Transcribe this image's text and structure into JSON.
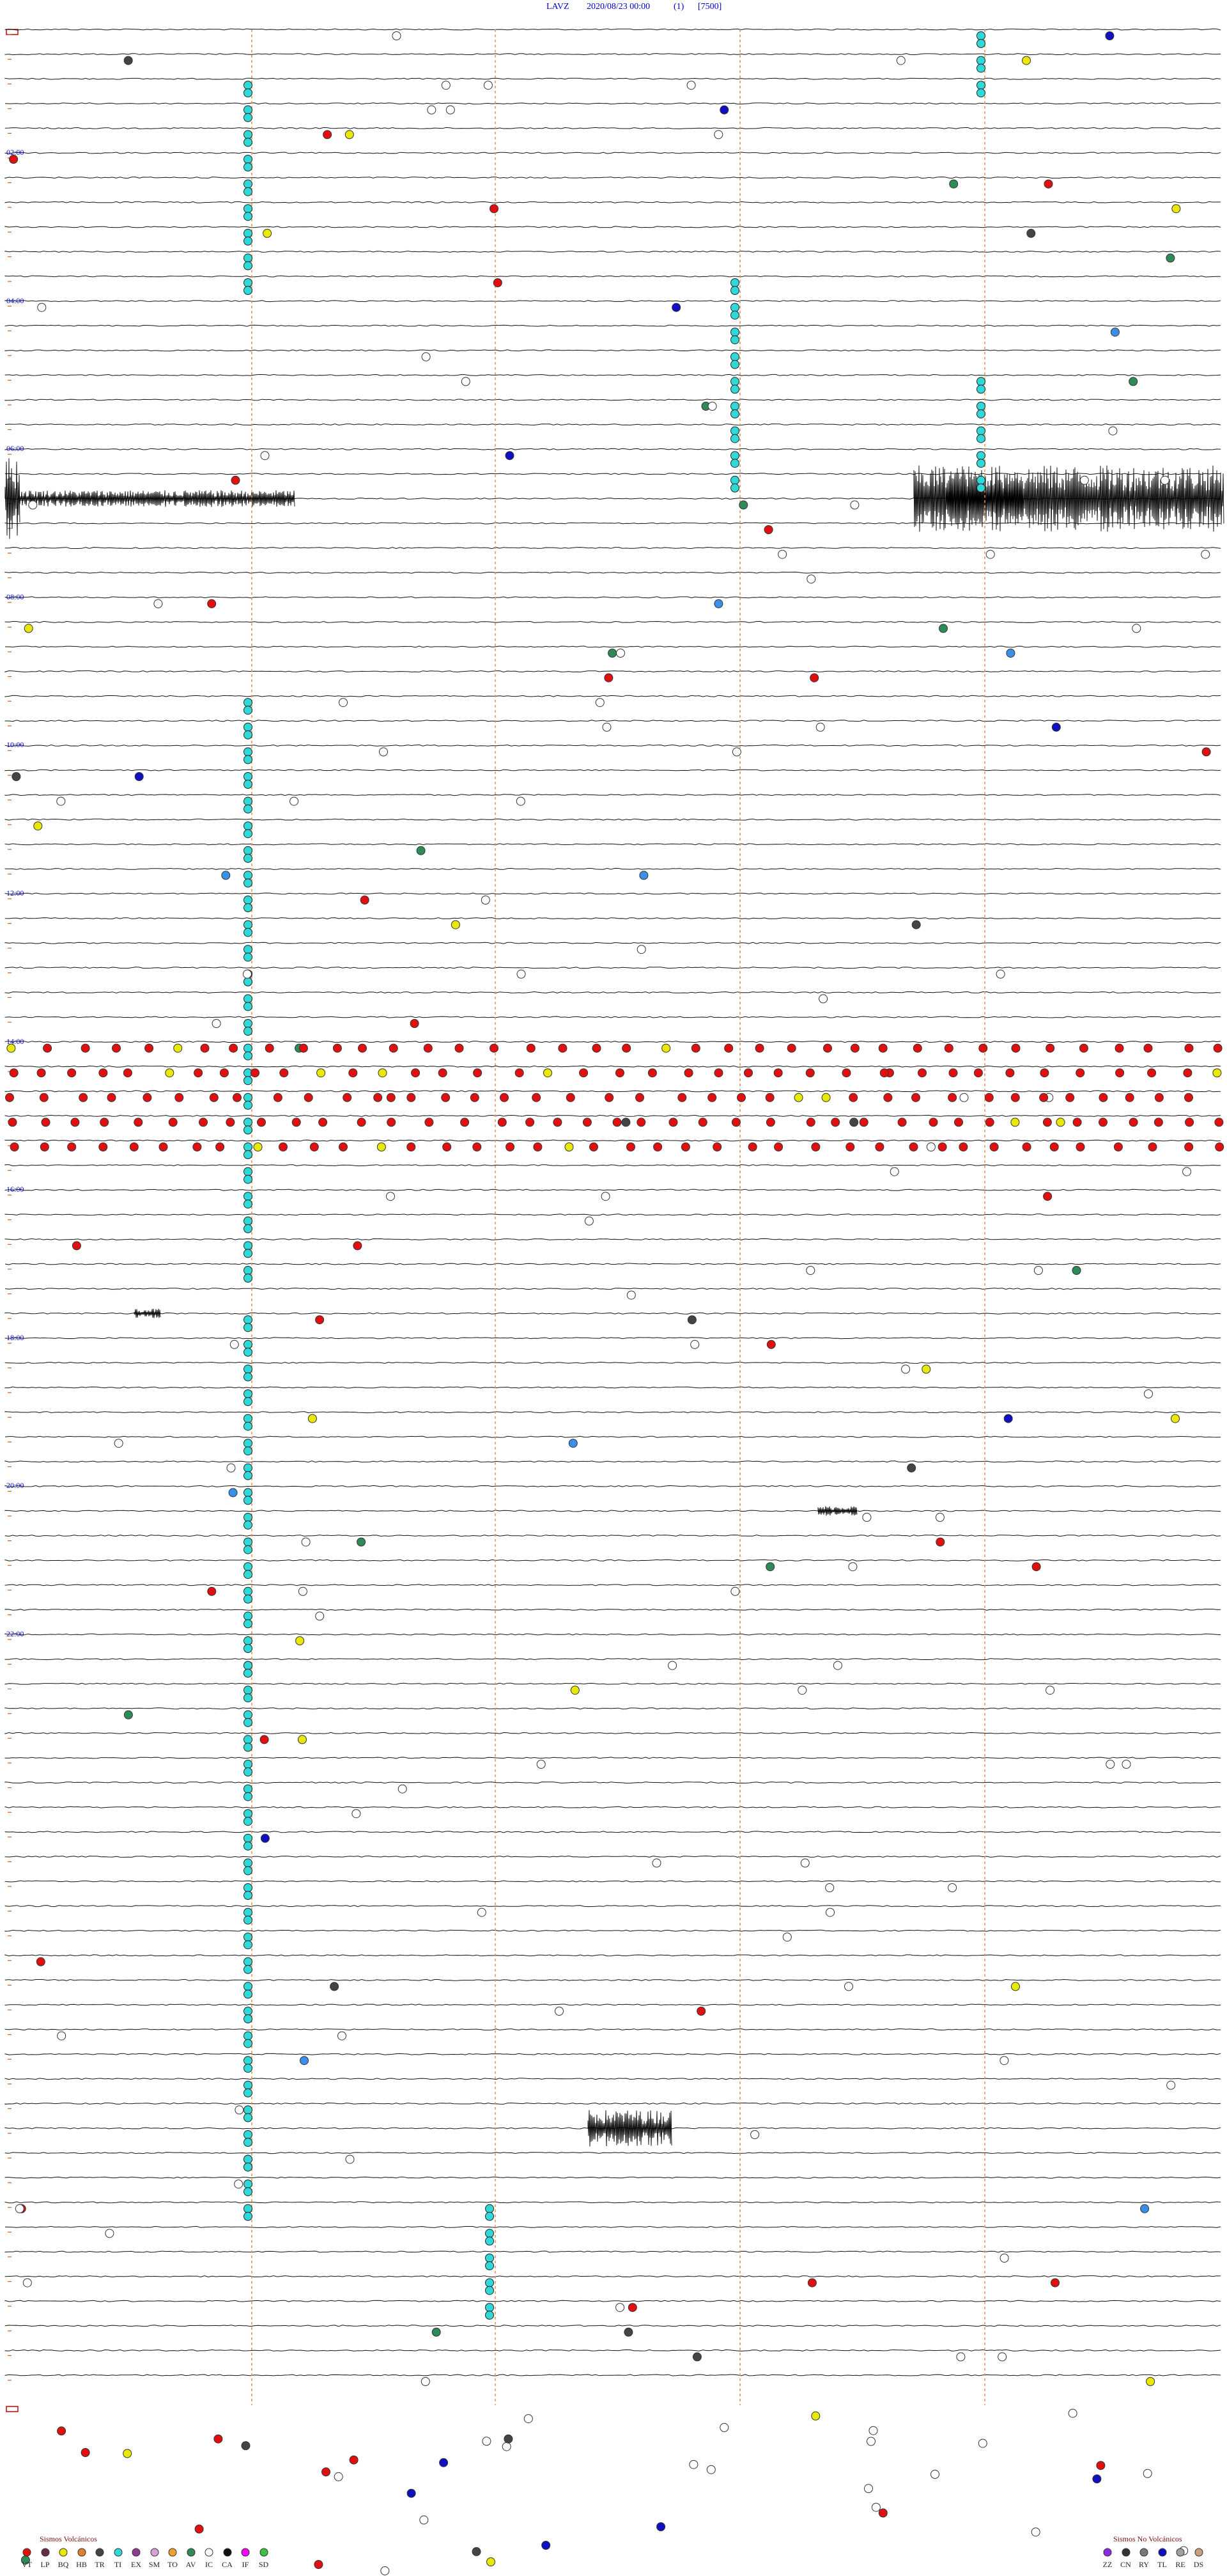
{
  "header": {
    "station": "LAVZ",
    "datetime": "2020/08/23 00:00",
    "component": "(1)",
    "scale": "[7500]"
  },
  "time_labels": [
    "02:00",
    "04:00",
    "06:00",
    "08:00",
    "10:00",
    "12:00",
    "14:00",
    "16:00",
    "18:00",
    "20:00",
    "22:00"
  ],
  "legend": {
    "volcanic_title": "Sismos Volcánicos",
    "volcanic": [
      {
        "code": "VT",
        "color": "#e01010"
      },
      {
        "code": "LP",
        "color": "#6b2a4a"
      },
      {
        "code": "BQ",
        "color": "#e8e800"
      },
      {
        "code": "HB",
        "color": "#e08030"
      },
      {
        "code": "TR",
        "color": "#444444"
      },
      {
        "code": "TI",
        "color": "#30d8d8"
      },
      {
        "code": "EX",
        "color": "#8c3c8c"
      },
      {
        "code": "SM",
        "color": "#d8a0d8"
      },
      {
        "code": "TO",
        "color": "#f0a030"
      },
      {
        "code": "AV",
        "color": "#2e8b57"
      },
      {
        "code": "IC",
        "color": "#ffffff"
      },
      {
        "code": "CA",
        "color": "#111111"
      },
      {
        "code": "IF",
        "color": "#ff00ff"
      },
      {
        "code": "SD",
        "color": "#40c040"
      }
    ],
    "nonvolcanic_title": "Sismos No Volcánicos",
    "nonvolcanic": [
      {
        "code": "ZZ",
        "color": "#8a2be2"
      },
      {
        "code": "CN",
        "color": "#333333"
      },
      {
        "code": "RY",
        "color": "#777777"
      },
      {
        "code": "TL",
        "color": "#1010c0"
      },
      {
        "code": "RE",
        "color": "#a0a0a0"
      },
      {
        "code": "DS",
        "color": "#c8a080"
      }
    ]
  }
}
